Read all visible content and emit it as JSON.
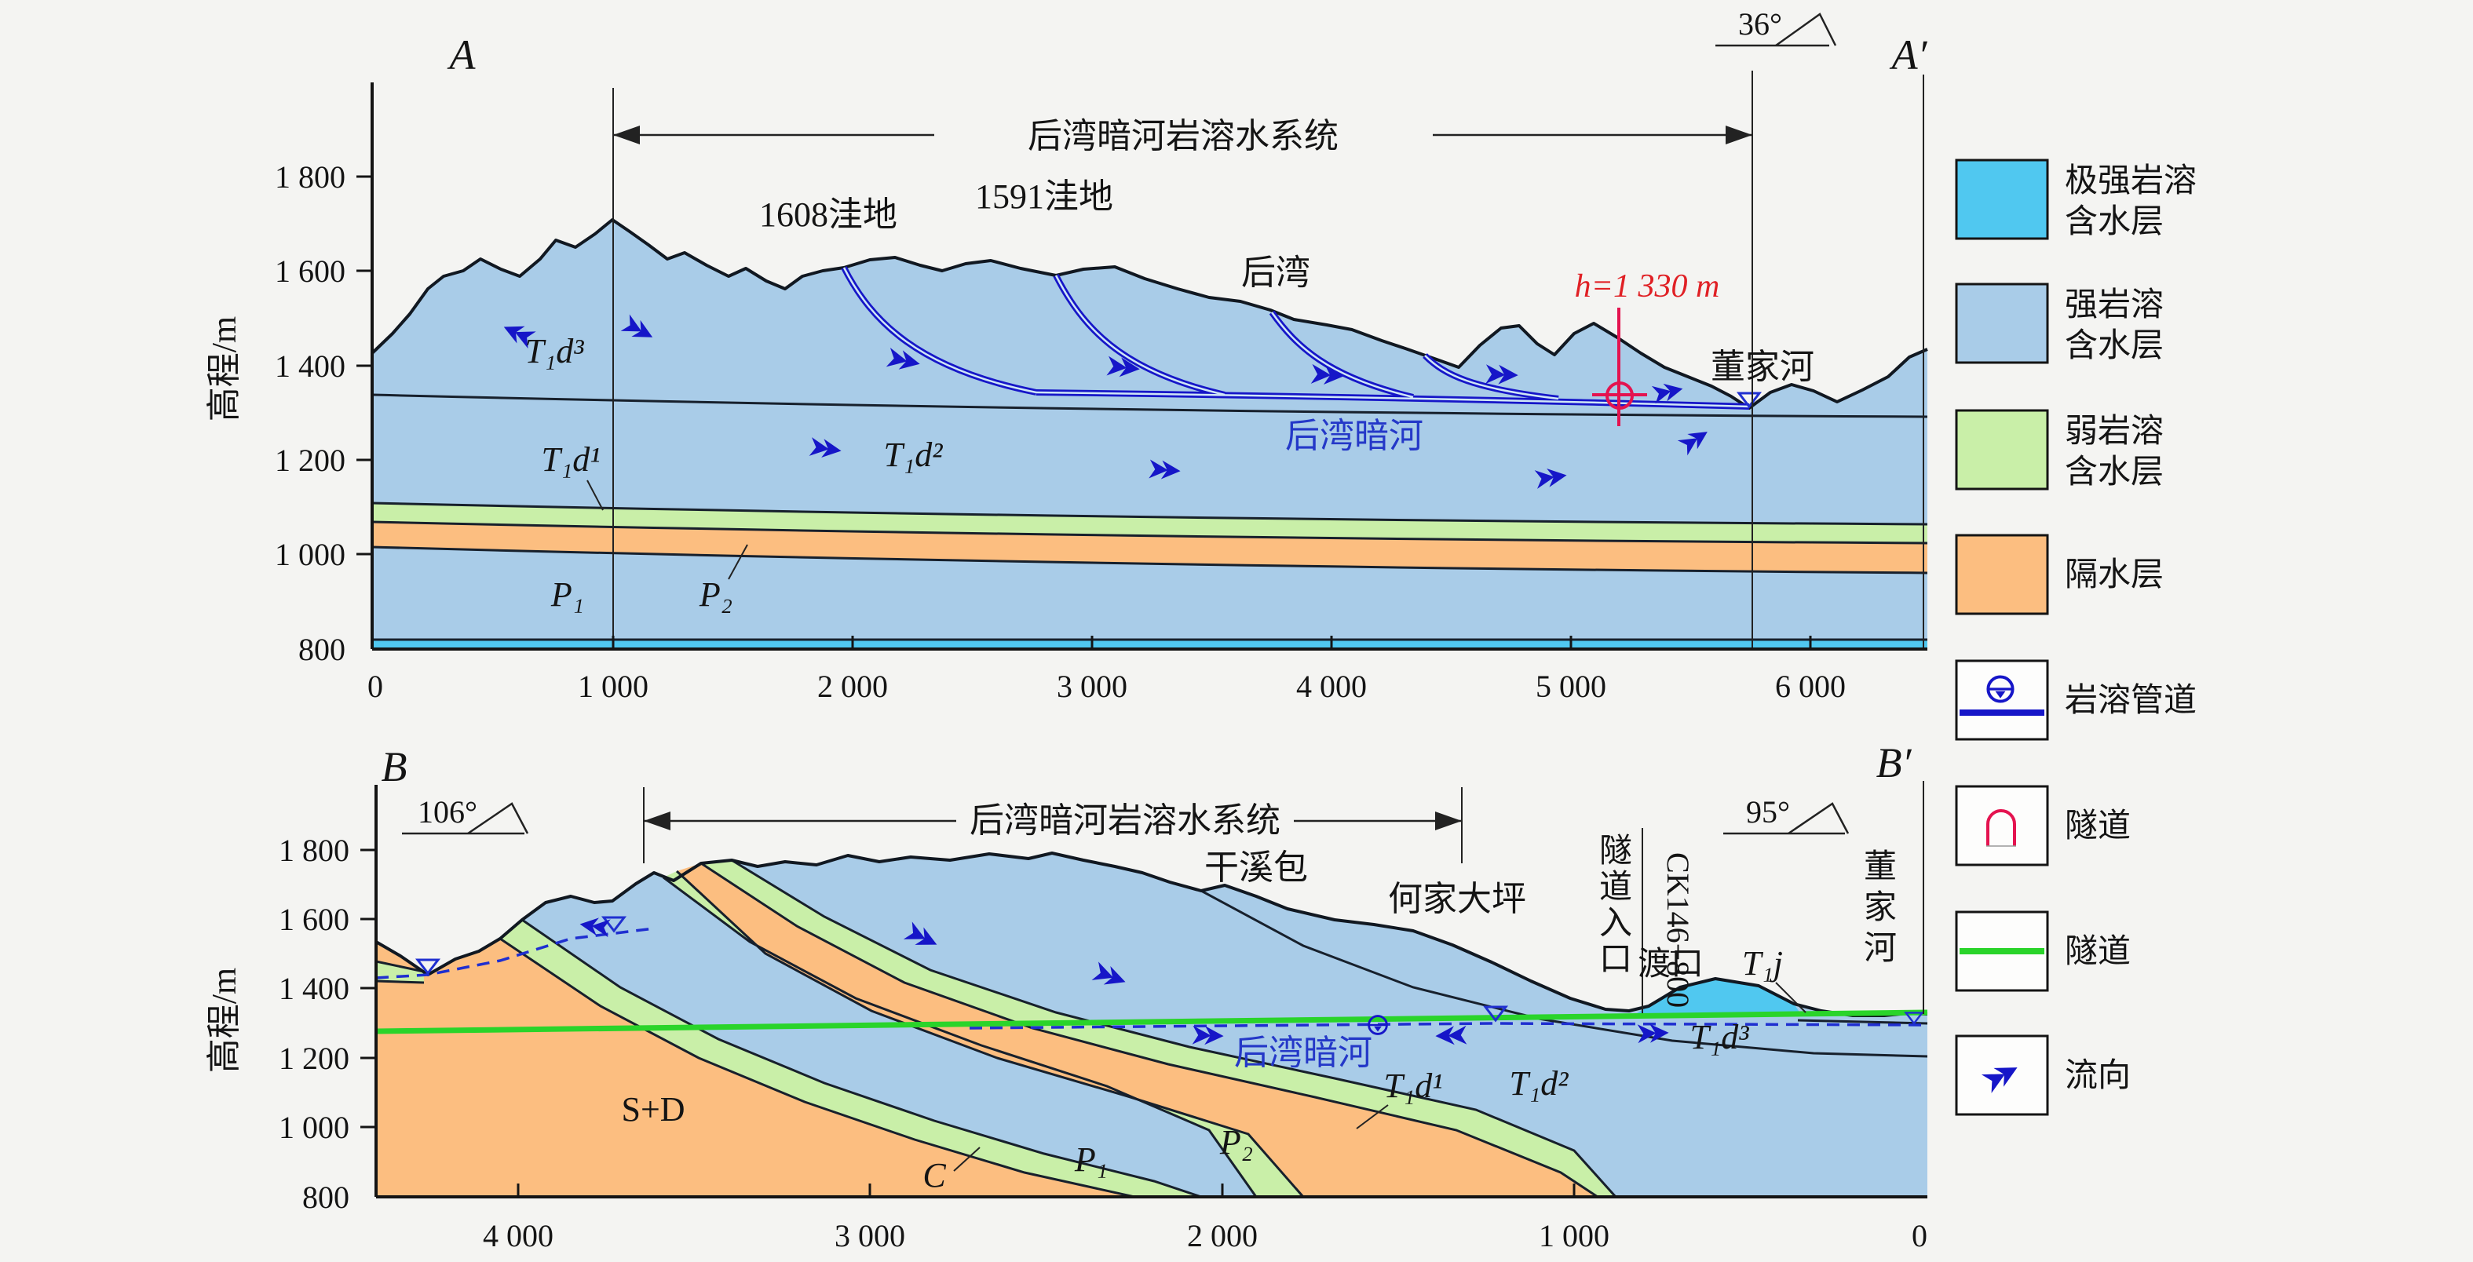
{
  "palette": {
    "background": "#f4f4f2",
    "strong_karst_blue": "#a9cce8",
    "extreme_karst_cyan": "#50c8f0",
    "weak_karst_green": "#c9efa8",
    "aquiclude_orange": "#fcbe80",
    "conduit_blue": "#1616c8",
    "tunnel_green": "#2ad42a",
    "tunnel_red": "#e4134f",
    "annotation_red": "#e02025",
    "river_text_blue": "#2438c8",
    "line_black": "#141414"
  },
  "section_a": {
    "label_left": "A",
    "label_right": "A′",
    "axis_label": "高程/m",
    "y_ticks": [
      "1 800",
      "1 600",
      "1 400",
      "1 200",
      "1 000",
      "800"
    ],
    "x_ticks": [
      "0",
      "1 000",
      "2 000",
      "3 000",
      "4 000",
      "5 000",
      "6 000"
    ],
    "system": "后湾暗河岩溶水系统",
    "strike": "36°",
    "depression_1608": "1608洼地",
    "depression_1591": "1591洼地",
    "houwan": "后湾",
    "dongjiahe": "董家河",
    "water_head": "h=1 330 m",
    "underground_river": "后湾暗河",
    "units": {
      "td3": "T₁d³",
      "td1": "T₁d¹",
      "td2": "T₁d²",
      "p1": "P₁",
      "p2": "P₂"
    }
  },
  "section_b": {
    "label_left": "B",
    "label_right": "B′",
    "axis_label": "高程/m",
    "y_ticks": [
      "1 800",
      "1 600",
      "1 400",
      "1 200",
      "1 000",
      "800"
    ],
    "x_ticks": [
      "4 000",
      "3 000",
      "2 000",
      "1 000",
      "0"
    ],
    "system": "后湾暗河岩溶水系统",
    "strike_left": "106°",
    "strike_right": "95°",
    "ganxibao": "干溪包",
    "hejiadaping": "何家大坪",
    "tunnel_portal": "隧道入口",
    "chainage": "CK146+800",
    "dukou": "渡口",
    "dongjiahe": "董家河",
    "underground_river": "后湾暗河",
    "units": {
      "sd": "S+D",
      "c": "C",
      "p1": "P₁",
      "p2": "P₂",
      "td1": "T₁d¹",
      "td2": "T₁d²",
      "td3": "T₁d³",
      "tj": "T₁j"
    }
  },
  "legend": {
    "items": [
      {
        "line1": "极强岩溶",
        "line2": "含水层"
      },
      {
        "line1": "强岩溶",
        "line2": "含水层"
      },
      {
        "line1": "弱岩溶",
        "line2": "含水层"
      },
      {
        "line1": "隔水层",
        "line2": ""
      },
      {
        "line1": "岩溶管道",
        "line2": ""
      },
      {
        "line1": "隧道",
        "line2": ""
      },
      {
        "line1": "隧道",
        "line2": ""
      },
      {
        "line1": "流向",
        "line2": ""
      }
    ]
  }
}
